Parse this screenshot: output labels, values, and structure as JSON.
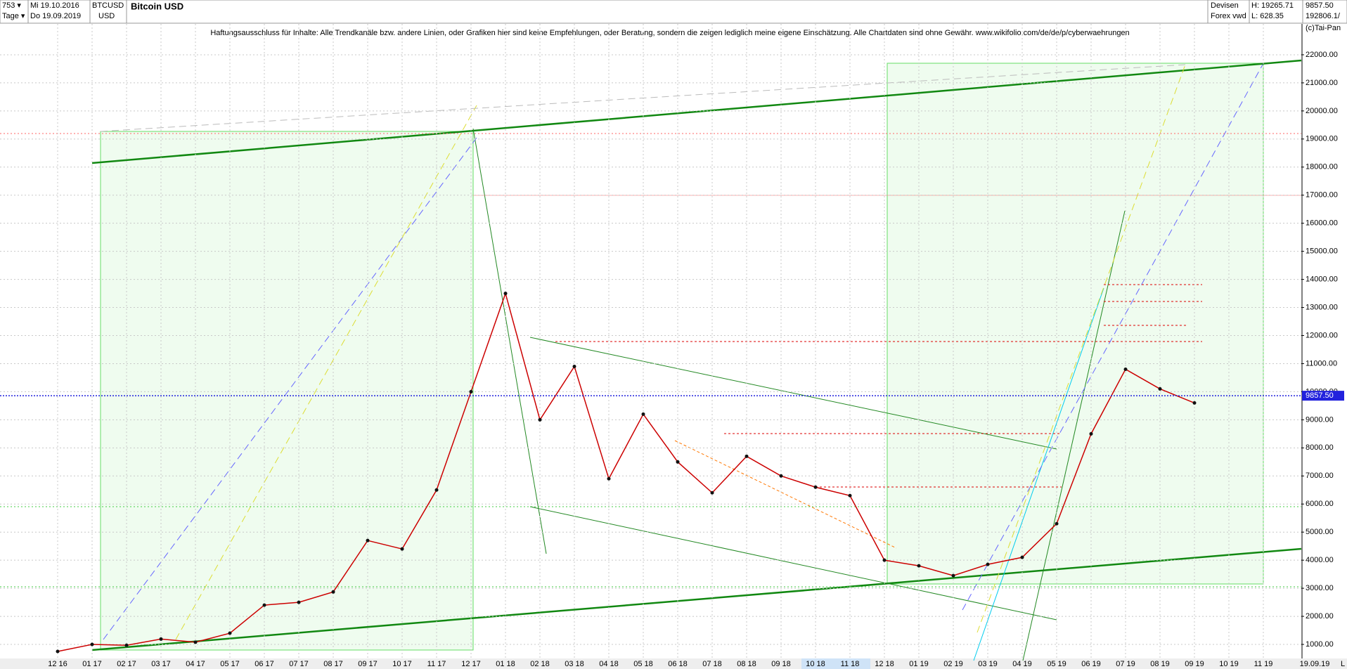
{
  "header": {
    "count": "753 ▾",
    "start_date": "Mi 19.10.2016",
    "period": "Tage ▾",
    "end_date": "Do 19.09.2019",
    "symbol": "BTCUSD",
    "currency": "USD",
    "exchange": "Devisen",
    "source": "Forex vwd",
    "high": "H: 19265.71",
    "low": "L: 628.35",
    "last": "9857.50",
    "volume": "192806.1/",
    "copyright": "(c)Tai-Pan",
    "end_label": "19.09.19",
    "scale_mode": "L"
  },
  "chart_data": {
    "type": "line",
    "title": "Bitcoin USD",
    "annotation": "Haftungsausschluss für Inhalte: Alle Trendkanäle bzw. andere Linien, oder Grafiken hier sind keine Empfehlungen, oder Beratung, sondern die zeigen lediglich meine eigene Einschätzung. Alle Chartdaten sind ohne Gewähr.  www.wikifolio.com/de/de/p/cyberwaehrungen",
    "categories": [
      "12 16",
      "01 17",
      "02 17",
      "03 17",
      "04 17",
      "05 17",
      "06 17",
      "07 17",
      "08 17",
      "09 17",
      "10 17",
      "11 17",
      "12 17",
      "01 18",
      "02 18",
      "03 18",
      "04 18",
      "05 18",
      "06 18",
      "07 18",
      "08 18",
      "09 18",
      "10 18",
      "11 18",
      "12 18",
      "01 19",
      "02 19",
      "03 19",
      "04 19",
      "05 19",
      "06 19",
      "07 19",
      "08 19",
      "09 19",
      "10 19",
      "11 19"
    ],
    "series": [
      {
        "name": "BTCUSD",
        "color": "#cc0000",
        "values": [
          750,
          1000,
          970,
          1190,
          1080,
          1400,
          2400,
          2500,
          2870,
          4700,
          4400,
          6500,
          10000,
          13500,
          9000,
          10900,
          6900,
          9200,
          7500,
          6400,
          7700,
          7000,
          6600,
          6300,
          4000,
          3800,
          3450,
          3850,
          4100,
          5300,
          8500,
          10800,
          10100,
          9600,
          null,
          null
        ]
      }
    ],
    "last": {
      "value": 9857.5,
      "label": "9857.50"
    },
    "ylim": [
      500,
      23100
    ],
    "yticks": [
      {
        "value": 1000,
        "label": "1000.00"
      },
      {
        "value": 2000,
        "label": "2000.00"
      },
      {
        "value": 3000,
        "label": "3000.00"
      },
      {
        "value": 4000,
        "label": "4000.00"
      },
      {
        "value": 5000,
        "label": "5000.00"
      },
      {
        "value": 6000,
        "label": "6000.00"
      },
      {
        "value": 7000,
        "label": "7000.00"
      },
      {
        "value": 8000,
        "label": "8000.00"
      },
      {
        "value": 9000,
        "label": "9000.00"
      },
      {
        "value": 10000,
        "label": "10000.00"
      },
      {
        "value": 11000,
        "label": "11000.00"
      },
      {
        "value": 12000,
        "label": "12000.00"
      },
      {
        "value": 13000,
        "label": "13000.00"
      },
      {
        "value": 14000,
        "label": "14000.00"
      },
      {
        "value": 15000,
        "label": "15000.00"
      },
      {
        "value": 16000,
        "label": "16000.00"
      },
      {
        "value": 17000,
        "label": "17000.00"
      },
      {
        "value": 18000,
        "label": "18000.00"
      },
      {
        "value": 19000,
        "label": "19000.00"
      },
      {
        "value": 20000,
        "label": "20000.00"
      },
      {
        "value": 21000,
        "label": "21000.00"
      },
      {
        "value": 22000,
        "label": "22000.00"
      }
    ],
    "grid": true
  }
}
